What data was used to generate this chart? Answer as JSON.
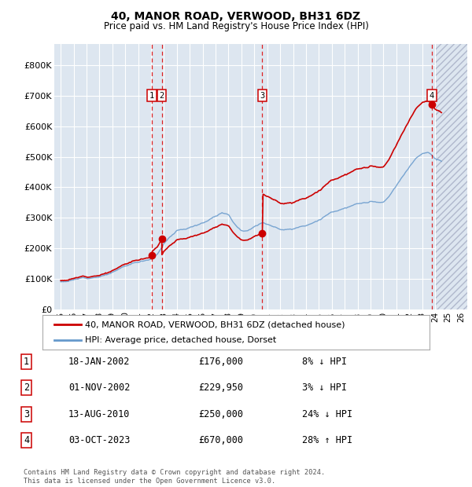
{
  "title": "40, MANOR ROAD, VERWOOD, BH31 6DZ",
  "subtitle": "Price paid vs. HM Land Registry's House Price Index (HPI)",
  "xlim_start": 1994.5,
  "xlim_end": 2026.5,
  "ylim": [
    0,
    870000
  ],
  "yticks": [
    0,
    100000,
    200000,
    300000,
    400000,
    500000,
    600000,
    700000,
    800000
  ],
  "ytick_labels": [
    "£0",
    "£100K",
    "£200K",
    "£300K",
    "£400K",
    "£500K",
    "£600K",
    "£700K",
    "£800K"
  ],
  "sale_dates_year": [
    2002.05,
    2002.83,
    2010.62,
    2023.75
  ],
  "sale_prices": [
    176000,
    229950,
    250000,
    670000
  ],
  "sale_labels": [
    "1",
    "2",
    "3",
    "4"
  ],
  "vline_color": "#dd0000",
  "sale_dot_color": "#cc0000",
  "hpi_color": "#6699cc",
  "price_line_color": "#cc0000",
  "background_color": "#dde6f0",
  "hatch_region_start": 2024.08,
  "hatch_region_end": 2026.5,
  "legend_label_price": "40, MANOR ROAD, VERWOOD, BH31 6DZ (detached house)",
  "legend_label_hpi": "HPI: Average price, detached house, Dorset",
  "table_data": [
    [
      "1",
      "18-JAN-2002",
      "£176,000",
      "8% ↓ HPI"
    ],
    [
      "2",
      "01-NOV-2002",
      "£229,950",
      "3% ↓ HPI"
    ],
    [
      "3",
      "13-AUG-2010",
      "£250,000",
      "24% ↓ HPI"
    ],
    [
      "4",
      "03-OCT-2023",
      "£670,000",
      "28% ↑ HPI"
    ]
  ],
  "footnote": "Contains HM Land Registry data © Crown copyright and database right 2024.\nThis data is licensed under the Open Government Licence v3.0.",
  "xtick_years": [
    1995,
    1996,
    1997,
    1998,
    1999,
    2000,
    2001,
    2002,
    2003,
    2004,
    2005,
    2006,
    2007,
    2008,
    2009,
    2010,
    2011,
    2012,
    2013,
    2014,
    2015,
    2016,
    2017,
    2018,
    2019,
    2020,
    2021,
    2022,
    2023,
    2024,
    2025,
    2026
  ],
  "hpi_seed": 12,
  "price_seed": 7
}
